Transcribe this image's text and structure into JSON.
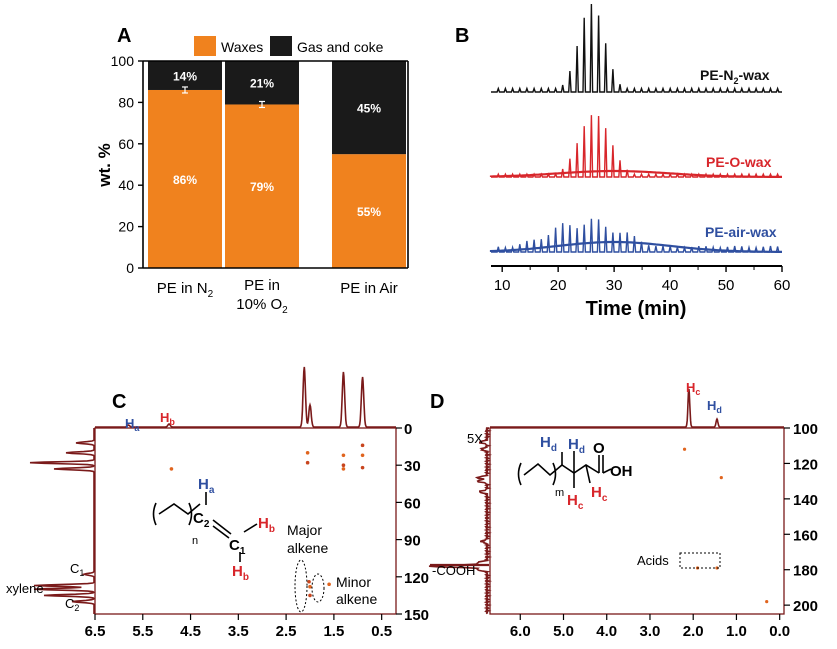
{
  "panel_a": {
    "label": "A",
    "legend": [
      {
        "name": "Waxes",
        "color": "#F0821E"
      },
      {
        "name": "Gas and coke",
        "color": "#1A1A1A"
      }
    ],
    "ylabel": "wt. %",
    "yticks": [
      "0",
      "20",
      "40",
      "60",
      "80",
      "100"
    ],
    "xtick_parts": [
      [
        "PE in N",
        "2",
        ""
      ],
      [
        "PE in",
        "",
        ""
      ],
      [
        "PE in Air",
        "",
        ""
      ]
    ],
    "xtick_line2": [
      "",
      "10% O|2",
      ""
    ]
  },
  "panel_b": {
    "label": "B",
    "xlabel": "Time (min)",
    "xticks": [
      "10",
      "20",
      "30",
      "40",
      "50",
      "60"
    ],
    "traces": [
      {
        "name": "PE-N",
        "sub": "2",
        "suffix": "-wax",
        "color": "#111111"
      },
      {
        "name": "PE-O-wax",
        "sub": "",
        "suffix": "",
        "color": "#D8262B"
      },
      {
        "name": "PE-air-wax",
        "sub": "",
        "suffix": "",
        "color": "#2F4FA0"
      }
    ]
  },
  "panel_c": {
    "label": "C",
    "xticks": [
      "6.5",
      "5.5",
      "4.5",
      "3.5",
      "2.5",
      "1.5",
      "0.5"
    ],
    "yticks": [
      "0",
      "30",
      "60",
      "90",
      "120",
      "150"
    ],
    "top_labels": [
      {
        "t": "H",
        "s": "a",
        "c": "#2F4FA0"
      },
      {
        "t": "H",
        "s": "b",
        "c": "#D8262B"
      }
    ],
    "left_labels": {
      "c1": "C",
      "c1s": "1",
      "c2": "C",
      "c2s": "2",
      "xylene": "xylene"
    },
    "struct": {
      "n": "n",
      "c2": "C",
      "c2s": "2",
      "c1": "C",
      "c1s": "1",
      "ha": "H",
      "has": "a",
      "hb": "H",
      "hbs": "b"
    },
    "major": [
      "Major",
      "alkene"
    ],
    "minor": [
      "Minor",
      "alkene"
    ]
  },
  "panel_d": {
    "label": "D",
    "xticks": [
      "6.0",
      "5.0",
      "4.0",
      "3.0",
      "2.0",
      "1.0",
      "0.0"
    ],
    "yticks": [
      "100",
      "120",
      "140",
      "160",
      "180",
      "200"
    ],
    "top_labels": [
      {
        "t": "H",
        "s": "c",
        "c": "#D8262B"
      },
      {
        "t": "H",
        "s": "d",
        "c": "#2F4FA0"
      }
    ],
    "scale_label": "5X",
    "cooh": "-COOH",
    "acids": "Acids",
    "struct": {
      "m": "m",
      "o": "O",
      "oh": "OH",
      "h": "H",
      "hd": "d",
      "hc": "c"
    }
  },
  "chart_data": [
    {
      "type": "bar",
      "stacked": true,
      "categories": [
        "PE in N2",
        "PE in 10% O2",
        "PE in Air"
      ],
      "series": [
        {
          "name": "Waxes",
          "values": [
            86,
            79,
            55
          ],
          "labels": [
            "86%",
            "79%",
            "55%"
          ],
          "color": "#F0821E"
        },
        {
          "name": "Gas and coke",
          "values": [
            14,
            21,
            45
          ],
          "labels": [
            "14%",
            "21%",
            "45%"
          ],
          "color": "#1A1A1A"
        }
      ],
      "ylabel": "wt. %",
      "ylim": [
        0,
        100
      ],
      "legend": "top"
    },
    {
      "type": "line",
      "xlabel": "Time (min)",
      "xlim": [
        8,
        60
      ],
      "series": [
        {
          "name": "PE-N2-wax",
          "peak_center": 26,
          "peak_width": 2.3,
          "peak_max": 1.0
        },
        {
          "name": "PE-O-wax",
          "peak_center": 26.5,
          "peak_width": 2.8,
          "peak_max": 0.9
        },
        {
          "name": "PE-air-wax",
          "peak_center": 25,
          "peak_width": 7,
          "peak_max": 0.7
        }
      ]
    },
    {
      "type": "scatter",
      "xlim": [
        6.5,
        0.2
      ],
      "ylim": [
        0,
        150
      ],
      "points": [
        {
          "x": 2.05,
          "y": 20
        },
        {
          "x": 2.05,
          "y": 28
        },
        {
          "x": 1.3,
          "y": 22
        },
        {
          "x": 1.3,
          "y": 30
        },
        {
          "x": 1.3,
          "y": 33
        },
        {
          "x": 0.9,
          "y": 14
        },
        {
          "x": 0.9,
          "y": 22
        },
        {
          "x": 0.9,
          "y": 32
        },
        {
          "x": 4.9,
          "y": 33
        },
        {
          "x": 2.02,
          "y": 124
        },
        {
          "x": 2.0,
          "y": 128
        },
        {
          "x": 2.0,
          "y": 135
        },
        {
          "x": 1.6,
          "y": 126
        }
      ]
    },
    {
      "type": "scatter",
      "xlim": [
        6.7,
        -0.1
      ],
      "ylim": [
        100,
        205
      ],
      "points": [
        {
          "x": 2.2,
          "y": 112
        },
        {
          "x": 1.35,
          "y": 128
        },
        {
          "x": 1.9,
          "y": 179
        },
        {
          "x": 1.45,
          "y": 179
        },
        {
          "x": 0.3,
          "y": 198
        }
      ]
    }
  ]
}
